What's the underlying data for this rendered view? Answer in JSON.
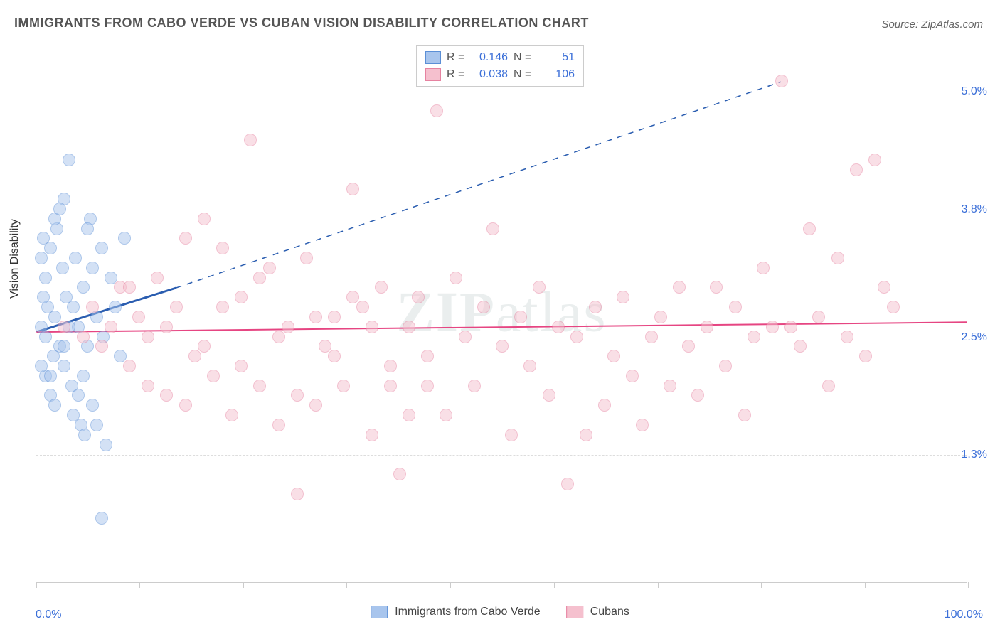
{
  "title": "IMMIGRANTS FROM CABO VERDE VS CUBAN VISION DISABILITY CORRELATION CHART",
  "source": "Source: ZipAtlas.com",
  "watermark": "ZIPatlas",
  "chart": {
    "type": "scatter",
    "background_color": "#ffffff",
    "grid_color": "#dddddd",
    "border_color": "#cccccc",
    "y_axis_label": "Vision Disability",
    "y_label_color": "#333333",
    "tick_label_color": "#3b6fd8",
    "xlim": [
      0,
      100
    ],
    "ylim": [
      0,
      5.5
    ],
    "x_tick_positions": [
      0,
      11.1,
      22.2,
      33.3,
      44.4,
      55.6,
      66.7,
      77.8,
      88.9,
      100
    ],
    "x_tick_labels": {
      "min": "0.0%",
      "max": "100.0%"
    },
    "y_gridlines": [
      1.3,
      2.5,
      3.8,
      5.0
    ],
    "y_tick_labels": [
      "1.3%",
      "2.5%",
      "3.8%",
      "5.0%"
    ],
    "marker_radius": 9,
    "marker_opacity": 0.5,
    "series": [
      {
        "name": "Immigrants from Cabo Verde",
        "fill_color": "#a8c5ed",
        "stroke_color": "#5b8fd6",
        "r_value": "0.146",
        "n_value": "51",
        "trend": {
          "x1": 0,
          "y1": 2.55,
          "x2": 15,
          "y2": 3.0,
          "solid": true,
          "dashed_to": {
            "x": 80,
            "y": 5.1
          },
          "color": "#2a5db0",
          "width": 3
        },
        "points": [
          [
            0.5,
            2.6
          ],
          [
            0.8,
            3.5
          ],
          [
            1.0,
            2.5
          ],
          [
            1.2,
            2.8
          ],
          [
            1.5,
            3.4
          ],
          [
            1.8,
            2.3
          ],
          [
            2.0,
            2.7
          ],
          [
            2.2,
            3.6
          ],
          [
            2.5,
            2.4
          ],
          [
            2.8,
            3.2
          ],
          [
            3.0,
            2.2
          ],
          [
            3.2,
            2.9
          ],
          [
            3.5,
            4.3
          ],
          [
            3.8,
            2.0
          ],
          [
            4.0,
            1.7
          ],
          [
            4.2,
            3.3
          ],
          [
            4.5,
            2.6
          ],
          [
            4.8,
            1.6
          ],
          [
            5.0,
            3.0
          ],
          [
            5.2,
            1.5
          ],
          [
            5.5,
            2.4
          ],
          [
            5.8,
            3.7
          ],
          [
            6.0,
            1.8
          ],
          [
            6.5,
            2.7
          ],
          [
            7.0,
            3.4
          ],
          [
            7.2,
            2.5
          ],
          [
            7.5,
            1.4
          ],
          [
            8.0,
            3.1
          ],
          [
            8.5,
            2.8
          ],
          [
            9.0,
            2.3
          ],
          [
            9.5,
            3.5
          ],
          [
            3.0,
            3.9
          ],
          [
            2.0,
            3.7
          ],
          [
            1.5,
            1.9
          ],
          [
            1.0,
            2.1
          ],
          [
            0.8,
            2.9
          ],
          [
            0.5,
            3.3
          ],
          [
            4.0,
            2.8
          ],
          [
            5.5,
            3.6
          ],
          [
            6.5,
            1.6
          ],
          [
            7.0,
            0.65
          ],
          [
            2.5,
            3.8
          ],
          [
            1.5,
            2.1
          ],
          [
            3.5,
            2.6
          ],
          [
            4.5,
            1.9
          ],
          [
            0.5,
            2.2
          ],
          [
            1.0,
            3.1
          ],
          [
            2.0,
            1.8
          ],
          [
            3.0,
            2.4
          ],
          [
            5.0,
            2.1
          ],
          [
            6.0,
            3.2
          ]
        ]
      },
      {
        "name": "Cubans",
        "fill_color": "#f5c0ce",
        "stroke_color": "#e682a0",
        "r_value": "0.038",
        "n_value": "106",
        "trend": {
          "x1": 0,
          "y1": 2.55,
          "x2": 100,
          "y2": 2.65,
          "solid": true,
          "color": "#e64582",
          "width": 2
        },
        "points": [
          [
            3,
            2.6
          ],
          [
            5,
            2.5
          ],
          [
            6,
            2.8
          ],
          [
            7,
            2.4
          ],
          [
            8,
            2.6
          ],
          [
            9,
            3.0
          ],
          [
            10,
            2.2
          ],
          [
            11,
            2.7
          ],
          [
            12,
            2.5
          ],
          [
            13,
            3.1
          ],
          [
            14,
            1.9
          ],
          [
            15,
            2.8
          ],
          [
            16,
            3.5
          ],
          [
            17,
            2.3
          ],
          [
            18,
            3.7
          ],
          [
            19,
            2.1
          ],
          [
            20,
            3.4
          ],
          [
            21,
            1.7
          ],
          [
            22,
            2.9
          ],
          [
            23,
            4.5
          ],
          [
            24,
            2.0
          ],
          [
            25,
            3.2
          ],
          [
            26,
            1.6
          ],
          [
            27,
            2.6
          ],
          [
            28,
            0.9
          ],
          [
            29,
            3.3
          ],
          [
            30,
            1.8
          ],
          [
            31,
            2.4
          ],
          [
            32,
            2.7
          ],
          [
            33,
            2.0
          ],
          [
            34,
            4.0
          ],
          [
            35,
            2.8
          ],
          [
            36,
            1.5
          ],
          [
            37,
            3.0
          ],
          [
            38,
            2.2
          ],
          [
            39,
            1.1
          ],
          [
            40,
            2.6
          ],
          [
            41,
            2.9
          ],
          [
            42,
            2.3
          ],
          [
            43,
            4.8
          ],
          [
            44,
            1.7
          ],
          [
            45,
            3.1
          ],
          [
            46,
            2.5
          ],
          [
            47,
            2.0
          ],
          [
            48,
            2.8
          ],
          [
            49,
            3.6
          ],
          [
            50,
            2.4
          ],
          [
            51,
            1.5
          ],
          [
            52,
            2.7
          ],
          [
            53,
            2.2
          ],
          [
            54,
            3.0
          ],
          [
            55,
            1.9
          ],
          [
            56,
            2.6
          ],
          [
            57,
            1.0
          ],
          [
            58,
            2.5
          ],
          [
            59,
            1.5
          ],
          [
            60,
            2.8
          ],
          [
            61,
            1.8
          ],
          [
            62,
            2.3
          ],
          [
            63,
            2.9
          ],
          [
            64,
            2.1
          ],
          [
            65,
            1.6
          ],
          [
            66,
            2.5
          ],
          [
            67,
            2.7
          ],
          [
            68,
            2.0
          ],
          [
            69,
            3.0
          ],
          [
            70,
            2.4
          ],
          [
            71,
            1.9
          ],
          [
            72,
            2.6
          ],
          [
            73,
            3.0
          ],
          [
            74,
            2.2
          ],
          [
            75,
            2.8
          ],
          [
            76,
            1.7
          ],
          [
            77,
            2.5
          ],
          [
            78,
            3.2
          ],
          [
            79,
            2.6
          ],
          [
            80,
            5.1
          ],
          [
            81,
            2.6
          ],
          [
            82,
            2.4
          ],
          [
            83,
            3.6
          ],
          [
            84,
            2.7
          ],
          [
            85,
            2.0
          ],
          [
            86,
            3.3
          ],
          [
            87,
            2.5
          ],
          [
            88,
            4.2
          ],
          [
            89,
            2.3
          ],
          [
            90,
            4.3
          ],
          [
            91,
            3.0
          ],
          [
            92,
            2.8
          ],
          [
            10,
            3.0
          ],
          [
            12,
            2.0
          ],
          [
            14,
            2.6
          ],
          [
            16,
            1.8
          ],
          [
            18,
            2.4
          ],
          [
            20,
            2.8
          ],
          [
            22,
            2.2
          ],
          [
            24,
            3.1
          ],
          [
            26,
            2.5
          ],
          [
            28,
            1.9
          ],
          [
            30,
            2.7
          ],
          [
            32,
            2.3
          ],
          [
            34,
            2.9
          ],
          [
            36,
            2.6
          ],
          [
            38,
            2.0
          ],
          [
            40,
            1.7
          ],
          [
            42,
            2.0
          ]
        ]
      }
    ]
  },
  "legend_bottom_labels": [
    "Immigrants from Cabo Verde",
    "Cubans"
  ]
}
